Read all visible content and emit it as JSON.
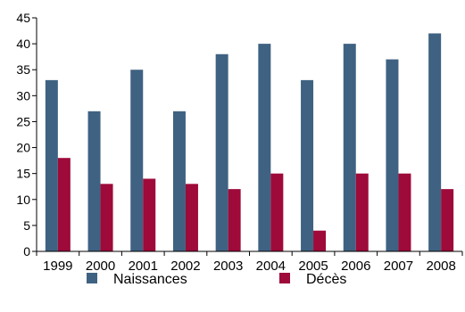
{
  "chart_data": {
    "type": "bar",
    "title": "",
    "xlabel": "",
    "ylabel": "",
    "categories": [
      "1999",
      "2000",
      "2001",
      "2002",
      "2003",
      "2004",
      "2005",
      "2006",
      "2007",
      "2008"
    ],
    "series": [
      {
        "name": "Naissances",
        "color": "#3f6282",
        "values": [
          33,
          27,
          35,
          27,
          38,
          40,
          33,
          40,
          37,
          42
        ]
      },
      {
        "name": "Décès",
        "color": "#9e0a3a",
        "values": [
          18,
          13,
          14,
          13,
          12,
          15,
          4,
          15,
          15,
          12
        ]
      }
    ],
    "ylim": [
      0,
      45
    ],
    "yticks": [
      0,
      5,
      10,
      15,
      20,
      25,
      30,
      35,
      40,
      45
    ],
    "grid": false,
    "legend_position": "bottom"
  }
}
